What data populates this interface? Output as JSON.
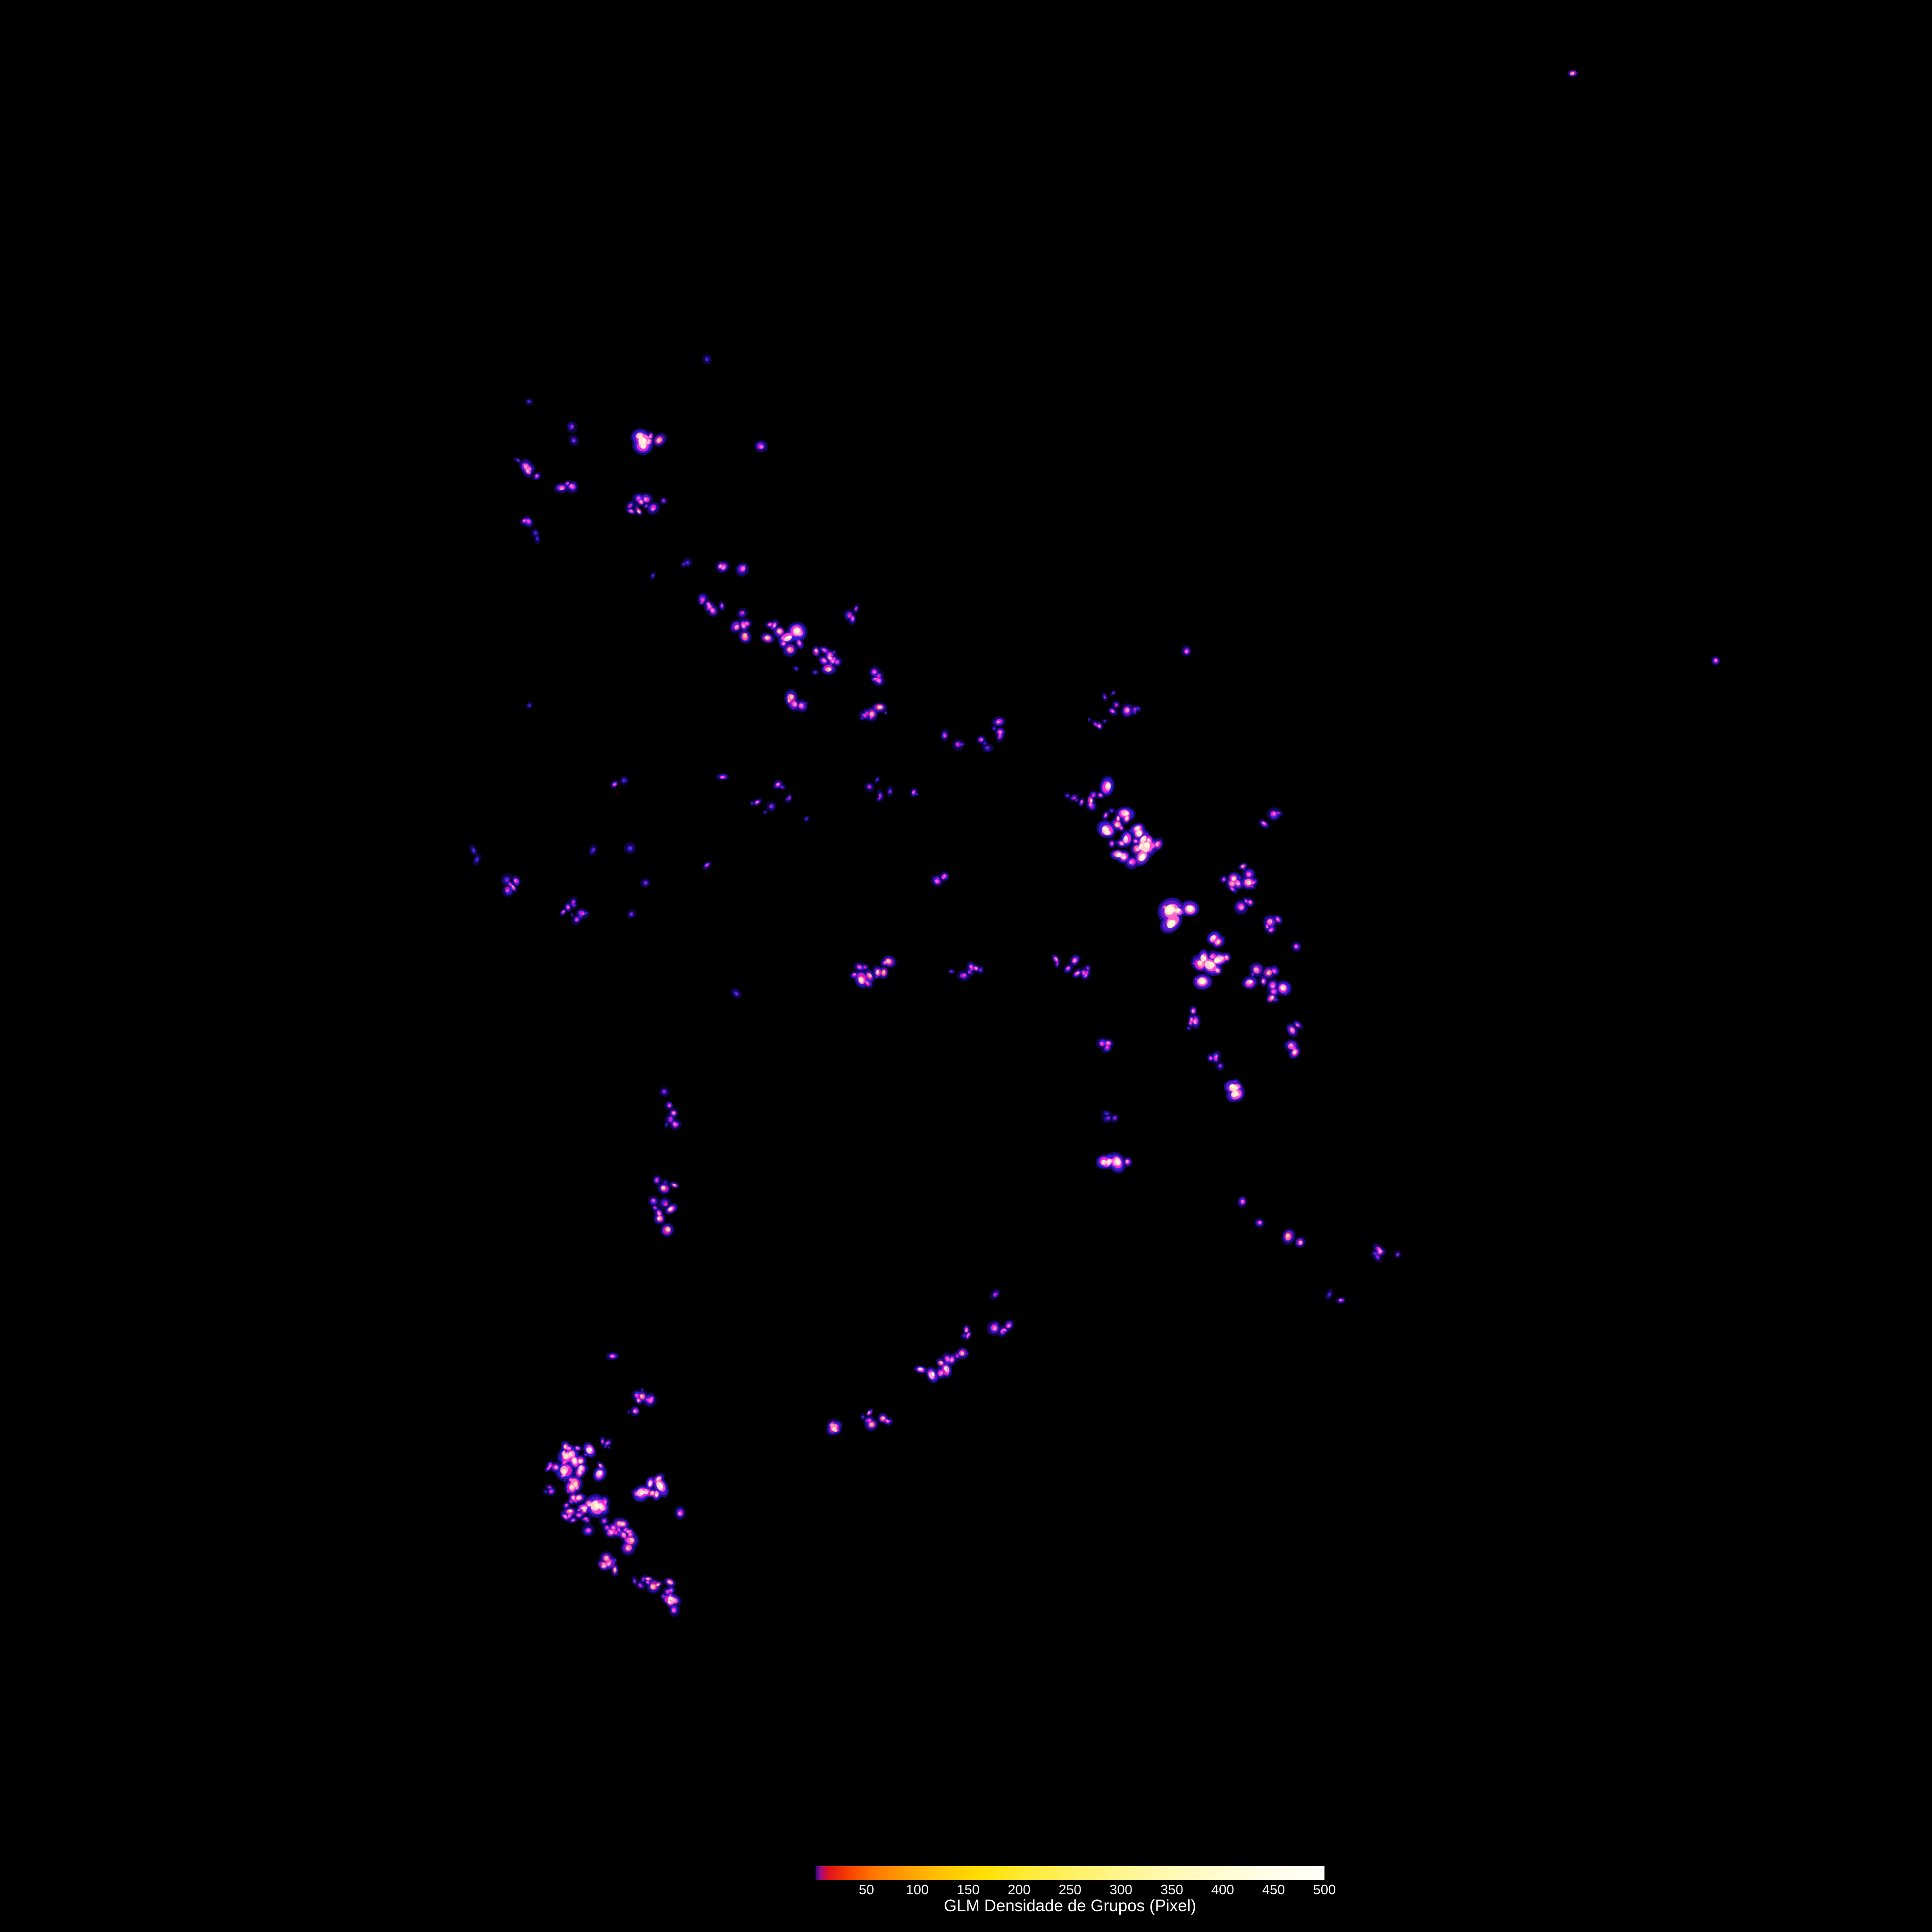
{
  "colorbar": {
    "label": "GLM Densidade de Grupos (Pixel)",
    "ticks": [
      50,
      100,
      150,
      200,
      250,
      300,
      350,
      400,
      450,
      500
    ],
    "min": 0,
    "max": 500,
    "gradient_stops": [
      [
        0.0,
        "#30087a"
      ],
      [
        0.01,
        "#a00d8a"
      ],
      [
        0.025,
        "#e01020"
      ],
      [
        0.06,
        "#f43b00"
      ],
      [
        0.11,
        "#ff7300"
      ],
      [
        0.18,
        "#ffa000"
      ],
      [
        0.26,
        "#ffc800"
      ],
      [
        0.33,
        "#ffdf00"
      ],
      [
        0.4,
        "#ffe92e"
      ],
      [
        0.5,
        "#fff060"
      ],
      [
        0.6,
        "#fff58e"
      ],
      [
        0.7,
        "#fff9b4"
      ],
      [
        0.8,
        "#fffcd2"
      ],
      [
        0.9,
        "#fffde9"
      ],
      [
        1.0,
        "#fffef9"
      ]
    ]
  },
  "chart_data": {
    "type": "heatmap",
    "title": "",
    "colorbar_label": "GLM Densidade de Grupos (Pixel)",
    "colorbar_ticks": [
      50,
      100,
      150,
      200,
      250,
      300,
      350,
      400,
      450,
      500
    ],
    "value_range": [
      0,
      500
    ],
    "background": "#000000",
    "legend_position": "bottom",
    "colormap_stops": [
      [
        0.0,
        0,
        0,
        0
      ],
      [
        0.012,
        28,
        12,
        130
      ],
      [
        0.032,
        48,
        28,
        215
      ],
      [
        0.058,
        115,
        22,
        200
      ],
      [
        0.082,
        195,
        18,
        120
      ],
      [
        0.108,
        236,
        28,
        42
      ],
      [
        0.16,
        250,
        80,
        5
      ],
      [
        0.23,
        255,
        130,
        0
      ],
      [
        0.33,
        255,
        195,
        0
      ],
      [
        0.44,
        255,
        228,
        45
      ],
      [
        0.57,
        255,
        241,
        125
      ],
      [
        0.72,
        255,
        249,
        185
      ],
      [
        0.86,
        255,
        252,
        222
      ],
      [
        1.0,
        255,
        255,
        255
      ]
    ],
    "seed": 7,
    "cluster_fields": [
      "cx_pct",
      "cy_pct",
      "rx_pct",
      "ry_pct",
      "angle_deg",
      "n_blobs",
      "value_min",
      "value_max"
    ],
    "clusters": [
      [
        33.4,
        22.6,
        0.7,
        0.55,
        20,
        9,
        120,
        430
      ],
      [
        27.3,
        24.3,
        0.5,
        0.4,
        0,
        5,
        50,
        150
      ],
      [
        29.5,
        24.9,
        0.45,
        0.35,
        0,
        4,
        60,
        140
      ],
      [
        33.2,
        26.2,
        0.85,
        0.45,
        0,
        9,
        50,
        180
      ],
      [
        27.1,
        26.9,
        0.3,
        0.25,
        0,
        3,
        60,
        130
      ],
      [
        38.0,
        29.3,
        0.8,
        0.3,
        0,
        4,
        40,
        140
      ],
      [
        36.7,
        31.6,
        0.6,
        0.45,
        30,
        6,
        40,
        150
      ],
      [
        38.4,
        32.3,
        0.55,
        0.45,
        30,
        7,
        50,
        170
      ],
      [
        40.6,
        33.0,
        0.95,
        0.45,
        25,
        11,
        80,
        320
      ],
      [
        42.7,
        34.1,
        0.8,
        0.5,
        25,
        9,
        70,
        260
      ],
      [
        44.3,
        31.8,
        0.4,
        0.3,
        0,
        3,
        60,
        150
      ],
      [
        45.2,
        35.0,
        0.55,
        0.4,
        0,
        5,
        40,
        160
      ],
      [
        41.0,
        36.4,
        0.5,
        0.35,
        0,
        4,
        60,
        280
      ],
      [
        44.9,
        36.9,
        0.6,
        0.4,
        0,
        5,
        50,
        200
      ],
      [
        57.5,
        36.5,
        2.2,
        1.6,
        0,
        9,
        30,
        130
      ],
      [
        45.5,
        41.0,
        1.4,
        1.0,
        0,
        6,
        30,
        120
      ],
      [
        48.9,
        45.4,
        0.6,
        0.5,
        0,
        3,
        80,
        200
      ],
      [
        50.5,
        38.5,
        1.5,
        1.2,
        0,
        7,
        30,
        140
      ],
      [
        40.8,
        41.5,
        1.3,
        1.5,
        0,
        6,
        25,
        110
      ],
      [
        58.5,
        43.5,
        1.9,
        1.1,
        35,
        28,
        80,
        460
      ],
      [
        56.6,
        41.3,
        0.8,
        0.5,
        0,
        6,
        60,
        260
      ],
      [
        64.2,
        45.3,
        0.8,
        0.7,
        0,
        10,
        60,
        300
      ],
      [
        65.8,
        47.8,
        0.5,
        0.35,
        0,
        4,
        80,
        220
      ],
      [
        64.5,
        46.7,
        0.5,
        0.4,
        0,
        3,
        60,
        150
      ],
      [
        65.7,
        42.3,
        0.5,
        0.4,
        0,
        3,
        30,
        110
      ],
      [
        60.8,
        47.4,
        0.8,
        0.5,
        0,
        6,
        150,
        440
      ],
      [
        45.6,
        50.4,
        1.5,
        0.6,
        0,
        11,
        50,
        240
      ],
      [
        49.9,
        50.4,
        0.9,
        0.5,
        0,
        5,
        40,
        140
      ],
      [
        55.9,
        50.1,
        1.3,
        0.7,
        0,
        9,
        50,
        200
      ],
      [
        62.7,
        49.6,
        0.9,
        0.9,
        -60,
        13,
        100,
        430
      ],
      [
        65.6,
        51.0,
        0.8,
        1.0,
        -30,
        10,
        80,
        310
      ],
      [
        66.8,
        54.1,
        0.55,
        0.8,
        0,
        5,
        70,
        220
      ],
      [
        34.8,
        58.1,
        0.5,
        1.1,
        0,
        8,
        40,
        160
      ],
      [
        34.3,
        62.3,
        0.6,
        1.2,
        0,
        10,
        50,
        260
      ],
      [
        26.3,
        45.8,
        0.5,
        0.3,
        30,
        5,
        30,
        150
      ],
      [
        30.1,
        47.4,
        0.9,
        0.5,
        35,
        6,
        25,
        120
      ],
      [
        33.2,
        72.6,
        0.8,
        0.5,
        0,
        7,
        60,
        200
      ],
      [
        33.5,
        77.0,
        0.7,
        0.55,
        0,
        8,
        80,
        390
      ],
      [
        31.6,
        79.2,
        0.45,
        0.35,
        0,
        4,
        60,
        150
      ],
      [
        31.6,
        81.0,
        0.7,
        0.4,
        20,
        6,
        50,
        180
      ],
      [
        30.1,
        75.6,
        1.3,
        0.9,
        -20,
        24,
        60,
        300
      ],
      [
        28.5,
        75.8,
        0.6,
        0.3,
        0,
        5,
        40,
        160
      ],
      [
        29.6,
        77.2,
        0.8,
        0.6,
        0,
        11,
        50,
        250
      ],
      [
        29.8,
        78.0,
        0.7,
        0.5,
        0,
        8,
        50,
        200
      ],
      [
        30.8,
        77.9,
        0.9,
        0.35,
        0,
        7,
        80,
        360
      ],
      [
        30.0,
        78.6,
        0.5,
        0.4,
        0,
        5,
        50,
        150
      ],
      [
        31.7,
        79.0,
        1.0,
        0.5,
        10,
        9,
        60,
        220
      ],
      [
        32.5,
        79.9,
        0.8,
        0.5,
        30,
        7,
        50,
        200
      ],
      [
        33.6,
        81.9,
        1.0,
        0.5,
        25,
        8,
        50,
        220
      ],
      [
        34.5,
        82.5,
        0.8,
        0.45,
        25,
        6,
        60,
        240
      ],
      [
        35.0,
        83.0,
        0.5,
        0.4,
        25,
        4,
        80,
        260
      ],
      [
        43.3,
        74.0,
        0.5,
        0.35,
        0,
        4,
        60,
        300
      ],
      [
        45.2,
        73.4,
        0.7,
        0.45,
        0,
        6,
        50,
        200
      ],
      [
        48.5,
        71.0,
        0.6,
        0.4,
        0,
        5,
        80,
        350
      ],
      [
        49.4,
        70.3,
        0.5,
        0.35,
        0,
        4,
        40,
        150
      ],
      [
        50.1,
        68.9,
        0.4,
        0.3,
        0,
        3,
        80,
        250
      ],
      [
        51.8,
        68.8,
        0.45,
        0.35,
        0,
        4,
        60,
        180
      ],
      [
        71.8,
        64.9,
        0.6,
        0.4,
        0,
        5,
        40,
        160
      ],
      [
        63.8,
        56.5,
        0.5,
        0.4,
        0,
        4,
        150,
        430
      ],
      [
        62.8,
        55.0,
        0.5,
        0.5,
        0,
        4,
        40,
        140
      ],
      [
        61.9,
        52.6,
        0.5,
        0.4,
        0,
        4,
        50,
        150
      ],
      [
        57.2,
        54.0,
        0.5,
        0.3,
        0,
        3,
        60,
        140
      ],
      [
        57.5,
        57.8,
        0.4,
        0.3,
        0,
        3,
        25,
        60
      ],
      [
        57.7,
        60.2,
        0.7,
        0.35,
        15,
        6,
        80,
        300
      ]
    ],
    "point_fields": [
      "x_pct",
      "y_pct",
      "value"
    ],
    "points": [
      [
        81.4,
        3.8,
        170
      ],
      [
        88.8,
        34.2,
        110
      ],
      [
        61.4,
        33.7,
        100
      ],
      [
        36.6,
        44.8,
        75
      ],
      [
        38.1,
        51.4,
        30
      ],
      [
        37.4,
        40.2,
        90
      ],
      [
        27.4,
        36.5,
        30
      ],
      [
        31.8,
        40.6,
        95
      ],
      [
        32.3,
        40.4,
        28
      ],
      [
        24.5,
        44.0,
        30
      ],
      [
        24.7,
        44.5,
        28
      ],
      [
        33.4,
        45.7,
        35
      ],
      [
        32.7,
        47.3,
        35
      ],
      [
        30.7,
        44.0,
        30
      ],
      [
        32.6,
        43.9,
        30
      ],
      [
        68.8,
        67.0,
        28
      ],
      [
        69.4,
        67.3,
        95
      ],
      [
        35.2,
        78.3,
        100
      ],
      [
        31.7,
        70.2,
        100
      ],
      [
        27.4,
        20.8,
        30
      ],
      [
        29.6,
        22.1,
        40
      ],
      [
        29.7,
        22.8,
        35
      ],
      [
        33.8,
        29.8,
        35
      ],
      [
        39.4,
        23.1,
        90
      ],
      [
        36.6,
        18.6,
        25
      ],
      [
        27.7,
        27.6,
        28
      ],
      [
        27.8,
        27.9,
        26
      ],
      [
        64.3,
        62.2,
        100
      ],
      [
        65.2,
        63.3,
        90
      ],
      [
        66.7,
        64.0,
        170
      ],
      [
        67.3,
        64.3,
        140
      ],
      [
        67.1,
        49.0,
        90
      ],
      [
        51.5,
        67.0,
        55
      ],
      [
        57.3,
        40.7,
        260
      ],
      [
        41.2,
        34.6,
        35
      ],
      [
        42.2,
        34.8,
        35
      ],
      [
        35.4,
        29.2,
        30
      ],
      [
        35.6,
        29.1,
        28
      ]
    ]
  }
}
